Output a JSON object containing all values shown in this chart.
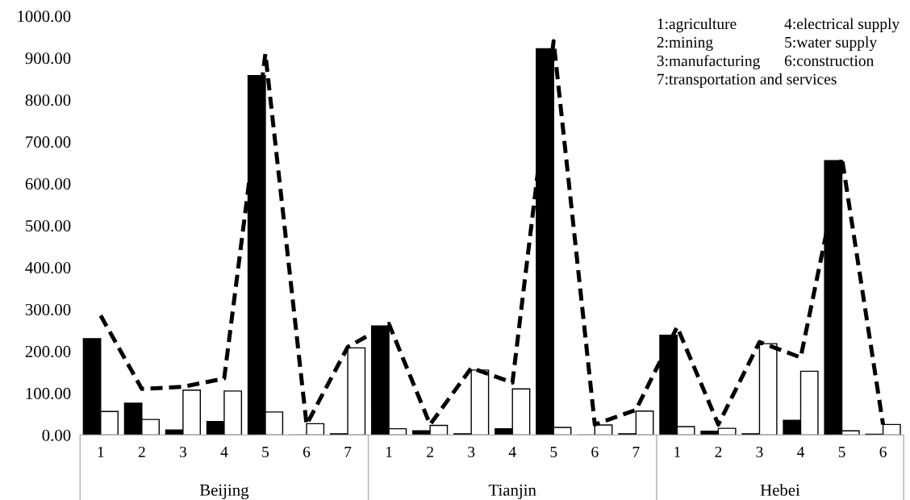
{
  "chart_data": {
    "type": "bar",
    "categories": [
      "1",
      "2",
      "3",
      "4",
      "5",
      "6",
      "7",
      "1",
      "2",
      "3",
      "4",
      "5",
      "6",
      "7",
      "1",
      "2",
      "3",
      "4",
      "5",
      "6"
    ],
    "series": [
      {
        "color": "#000000",
        "values": [
          230,
          76,
          12,
          32,
          858,
          0,
          3,
          260,
          10,
          3,
          15,
          922,
          0,
          3,
          238,
          9,
          3,
          35,
          655,
          2
        ]
      },
      {
        "color": "#ffffff",
        "values": [
          56,
          37,
          107,
          105,
          55,
          27,
          208,
          15,
          23,
          155,
          110,
          18,
          24,
          57,
          20,
          16,
          218,
          152,
          10,
          25
        ]
      },
      {
        "type": "line",
        "color": "#000000",
        "line_style": "dashed",
        "marker": "none",
        "values": [
          285,
          110,
          115,
          135,
          910,
          25,
          210,
          265,
          25,
          160,
          125,
          940,
          25,
          60,
          258,
          25,
          222,
          185,
          662,
          25
        ]
      }
    ],
    "ylim": [
      0,
      1000
    ],
    "yticks": [
      {
        "value": 0,
        "label": "0.00"
      },
      {
        "value": 100,
        "label": "100.00"
      },
      {
        "value": 200,
        "label": "200.00"
      },
      {
        "value": 300,
        "label": "300.00"
      },
      {
        "value": 400,
        "label": "400.00"
      },
      {
        "value": 500,
        "label": "500.00"
      },
      {
        "value": 600,
        "label": "600.00"
      },
      {
        "value": 700,
        "label": "700.00"
      },
      {
        "value": 800,
        "label": "800.00"
      },
      {
        "value": 900,
        "label": "900.00"
      },
      {
        "value": 1000,
        "label": "1000.00"
      }
    ],
    "grid": false,
    "legend": false,
    "annotations": [
      "1:agriculture",
      "2:mining",
      "3:manufacturing",
      "7:transportation and services",
      "4:electrical supply",
      "5:water supply",
      "6:construction",
      "Beijing",
      "Tianjin",
      "Hebei"
    ]
  }
}
